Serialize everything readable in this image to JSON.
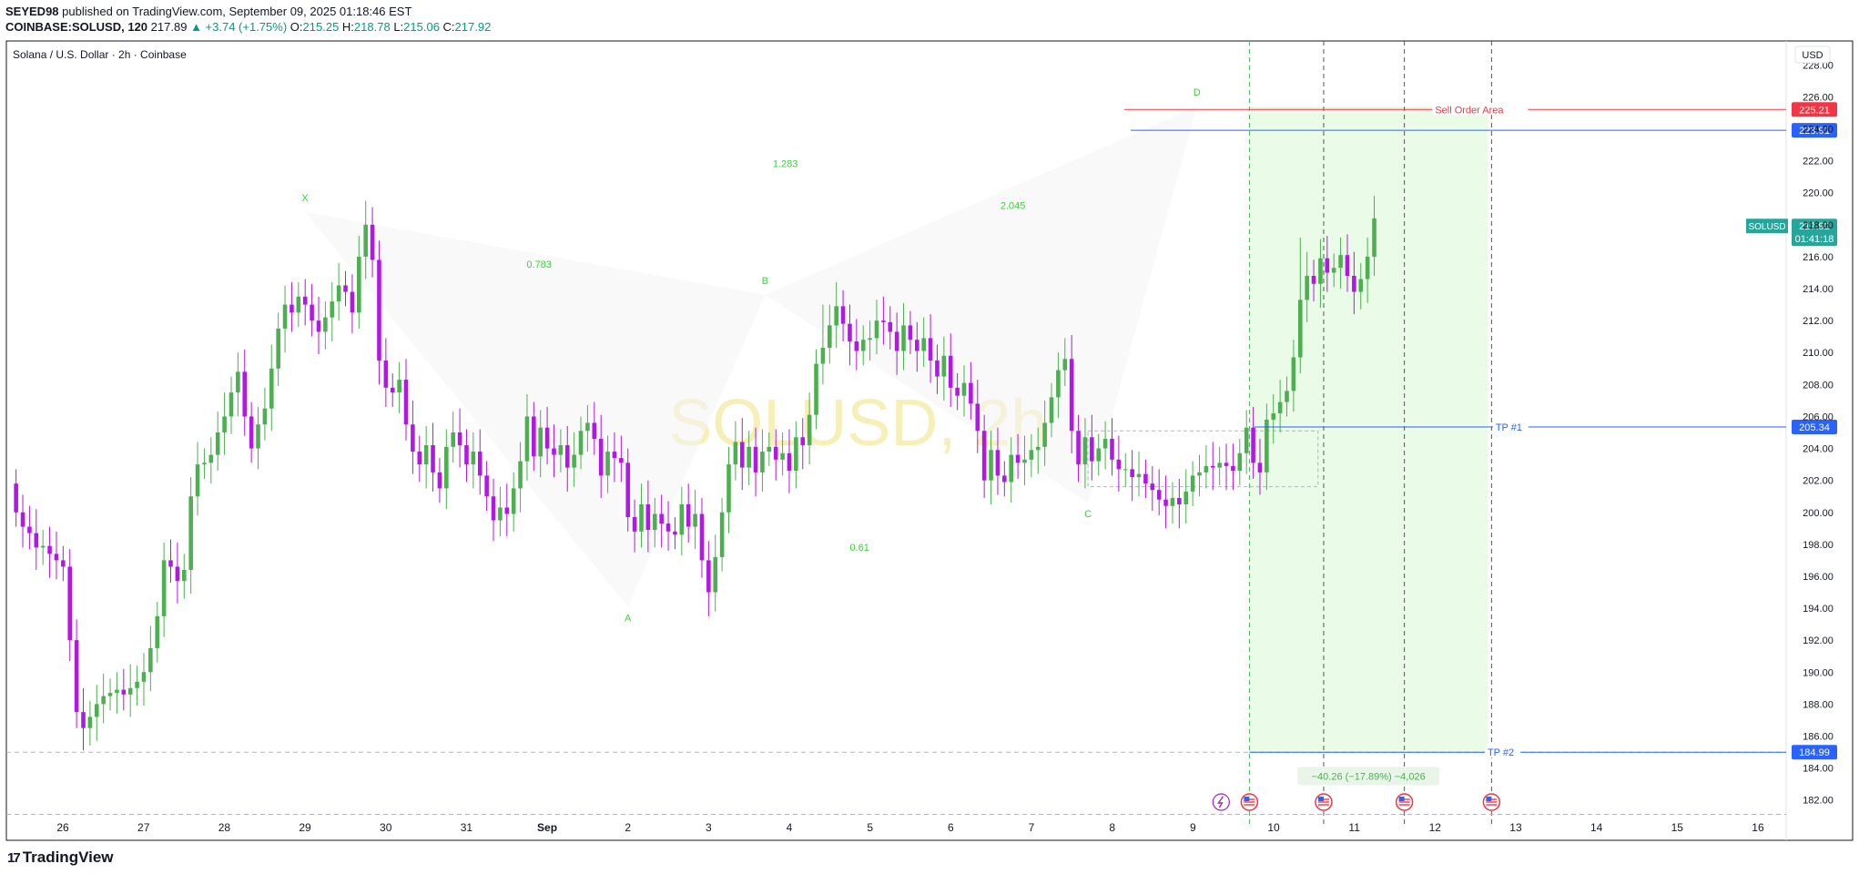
{
  "header": {
    "author": "SEYED98",
    "published": "published on TradingView.com, September 09, 2025 01:18:46 EST",
    "symbol": "COINBASE:SOLUSD, 120",
    "last": "217.89",
    "change": "▲ +3.74 (+1.75%)",
    "open_label": "O:",
    "open": "215.25",
    "high_label": "H:",
    "high": "218.78",
    "low_label": "L:",
    "low": "215.06",
    "close_label": "C:",
    "close": "217.92"
  },
  "footer": {
    "logo_text": "TradingView",
    "logo_mark": "17"
  },
  "colors": {
    "up": "#4caf50",
    "down": "#b217e8",
    "pattern_label": "#3fcf3f",
    "sell_line": "#f23645",
    "entry_line": "#2962ff",
    "tp_line": "#2962ff",
    "zone_fill": "#eafbe8",
    "watermark": "#f7efb8"
  },
  "chart_data": {
    "type": "candlestick",
    "title": "Solana / U.S. Dollar · 2h · Coinbase",
    "watermark": "SOLUSD, 2h",
    "currency": "USD",
    "ylim": [
      180.5,
      229.5
    ],
    "y_ticks": [
      "182.00",
      "184.00",
      "186.00",
      "188.00",
      "190.00",
      "192.00",
      "194.00",
      "196.00",
      "198.00",
      "200.00",
      "202.00",
      "204.00",
      "206.00",
      "208.00",
      "210.00",
      "212.00",
      "214.00",
      "216.00",
      "218.00",
      "220.00",
      "222.00",
      "224.00",
      "226.00",
      "228.00"
    ],
    "x_ticks": [
      {
        "label": "26",
        "t": 0.7
      },
      {
        "label": "27",
        "t": 1.7
      },
      {
        "label": "28",
        "t": 2.7
      },
      {
        "label": "29",
        "t": 3.7
      },
      {
        "label": "30",
        "t": 4.7
      },
      {
        "label": "31",
        "t": 5.7
      },
      {
        "label": "Sep",
        "t": 6.7
      },
      {
        "label": "2",
        "t": 7.7
      },
      {
        "label": "3",
        "t": 8.7
      },
      {
        "label": "4",
        "t": 9.7
      },
      {
        "label": "5",
        "t": 10.7
      },
      {
        "label": "6",
        "t": 11.7
      },
      {
        "label": "7",
        "t": 12.7
      },
      {
        "label": "8",
        "t": 13.7
      },
      {
        "label": "9",
        "t": 14.7
      },
      {
        "label": "10",
        "t": 15.7
      },
      {
        "label": "11",
        "t": 16.7
      },
      {
        "label": "12",
        "t": 17.7
      },
      {
        "label": "13",
        "t": 18.7
      },
      {
        "label": "14",
        "t": 19.7
      },
      {
        "label": "15",
        "t": 20.7
      },
      {
        "label": "16",
        "t": 21.7
      }
    ],
    "x_range": [
      0,
      22.05
    ],
    "candle_step": 0.0833,
    "closes": [
      200,
      199.1,
      198.7,
      197.8,
      197.9,
      197.4,
      197,
      196.6,
      192,
      187.5,
      186.5,
      187.2,
      188,
      188.5,
      188.7,
      188.9,
      188.6,
      189,
      189.4,
      190,
      191.5,
      193.5,
      197,
      196.6,
      195.7,
      196.4,
      201,
      203,
      203.1,
      203.6,
      205,
      206,
      207.5,
      208.8,
      206,
      204,
      205.5,
      206.5,
      209,
      211.5,
      213,
      212.5,
      213.5,
      213,
      212,
      211.3,
      212.2,
      213.2,
      214.2,
      213.8,
      212.5,
      216,
      218,
      215.8,
      209.5,
      207.8,
      207.5,
      208.3,
      205.5,
      203.8,
      203,
      204.2,
      202.5,
      201.5,
      204.1,
      205,
      204.2,
      203,
      203.8,
      202.3,
      201,
      199.5,
      200.3,
      199.9,
      201.5,
      203.2,
      206,
      203.5,
      205.3,
      204,
      203.6,
      204.2,
      202.8,
      203.6,
      205.1,
      205.6,
      204.6,
      202.3,
      203.8,
      203.4,
      203.1,
      199.7,
      198.8,
      200.5,
      198.9,
      199.9,
      199.3,
      198.8,
      198.6,
      200.5,
      199.1,
      199.9,
      197,
      195,
      197.2,
      200,
      203,
      204.4,
      202.8,
      204.1,
      202.5,
      203.8,
      204.1,
      203.3,
      203.7,
      202.6,
      204.7,
      204.2,
      206.1,
      209.3,
      210.3,
      211.7,
      212.9,
      211.8,
      210.7,
      210.1,
      210.8,
      210.9,
      212,
      211.9,
      211.3,
      210.1,
      211.7,
      210.8,
      210.1,
      210.9,
      209.5,
      208.5,
      209.8,
      207.8,
      207.3,
      208.1,
      206.8,
      205.1,
      202,
      203.9,
      202.3,
      201.9,
      203.6,
      203.1,
      203.3,
      203.9,
      204.1,
      205.6,
      207.2,
      208.9,
      209.6,
      205.1,
      203,
      204.7,
      203.2,
      204,
      204.6,
      203.3,
      202.7,
      202.7,
      202.2,
      202.4,
      201.8,
      201.4,
      200.8,
      200.4,
      200.9,
      200.5,
      201.3,
      202.3,
      202.5,
      202.9,
      202.8,
      203.1,
      202.9,
      202.6,
      203.7,
      205.3,
      203.1,
      202.5,
      205.8,
      206.2,
      206.9,
      207.6,
      209.7,
      213.3,
      214.8,
      214.3,
      215.9,
      215,
      215.3,
      216.1,
      214.8,
      213.8,
      214.6,
      216,
      218.4
    ],
    "highs_extra": [
      {
        "i": 53,
        "h": 219.1
      },
      {
        "i": 120,
        "h": 213.0
      },
      {
        "i": 191,
        "h": 217.2
      },
      {
        "i": 203,
        "h": 219.0
      }
    ],
    "pattern_points": [
      {
        "label": "X",
        "t": 3.7,
        "y": 218.8
      },
      {
        "label": "A",
        "t": 7.7,
        "y": 194.1
      },
      {
        "label": "B",
        "t": 9.4,
        "y": 213.6
      },
      {
        "label": "C",
        "t": 13.4,
        "y": 200.6
      },
      {
        "label": "D",
        "t": 14.75,
        "y": 225.4
      }
    ],
    "ratios": [
      {
        "label": "0.783",
        "t": 6.6,
        "y": 215.3
      },
      {
        "label": "1.283",
        "t": 9.65,
        "y": 221.6
      },
      {
        "label": "0.61",
        "t": 10.57,
        "y": 197.6
      },
      {
        "label": "2.045",
        "t": 12.47,
        "y": 219.0
      }
    ],
    "levels": [
      {
        "name": "sell_order_area",
        "label": "Sell Order Area",
        "value": 225.21,
        "price_label": "225.21"
      },
      {
        "name": "entry",
        "value": 223.91,
        "price_label": "223.91"
      },
      {
        "name": "tp1",
        "label": "TP #1",
        "value": 205.34,
        "price_label": "205.34"
      },
      {
        "name": "tp2",
        "label": "TP #2",
        "value": 184.99,
        "price_label": "184.99"
      }
    ],
    "last_price": {
      "symbol": "SOLUSD",
      "price": "217.92",
      "countdown": "01:41:18",
      "value": 217.92
    },
    "target_zone": {
      "t_start": 15.4,
      "t_end": 18.35,
      "top": 225.4,
      "bottom": 184.99
    },
    "vertical_markers": [
      15.4,
      16.32,
      17.32,
      18.4
    ],
    "measure_label": "−40.26 (−17.89%) −4,026",
    "rect_box": {
      "t_start": 13.4,
      "t_end": 16.25,
      "top": 205.1,
      "bottom": 201.6
    }
  }
}
